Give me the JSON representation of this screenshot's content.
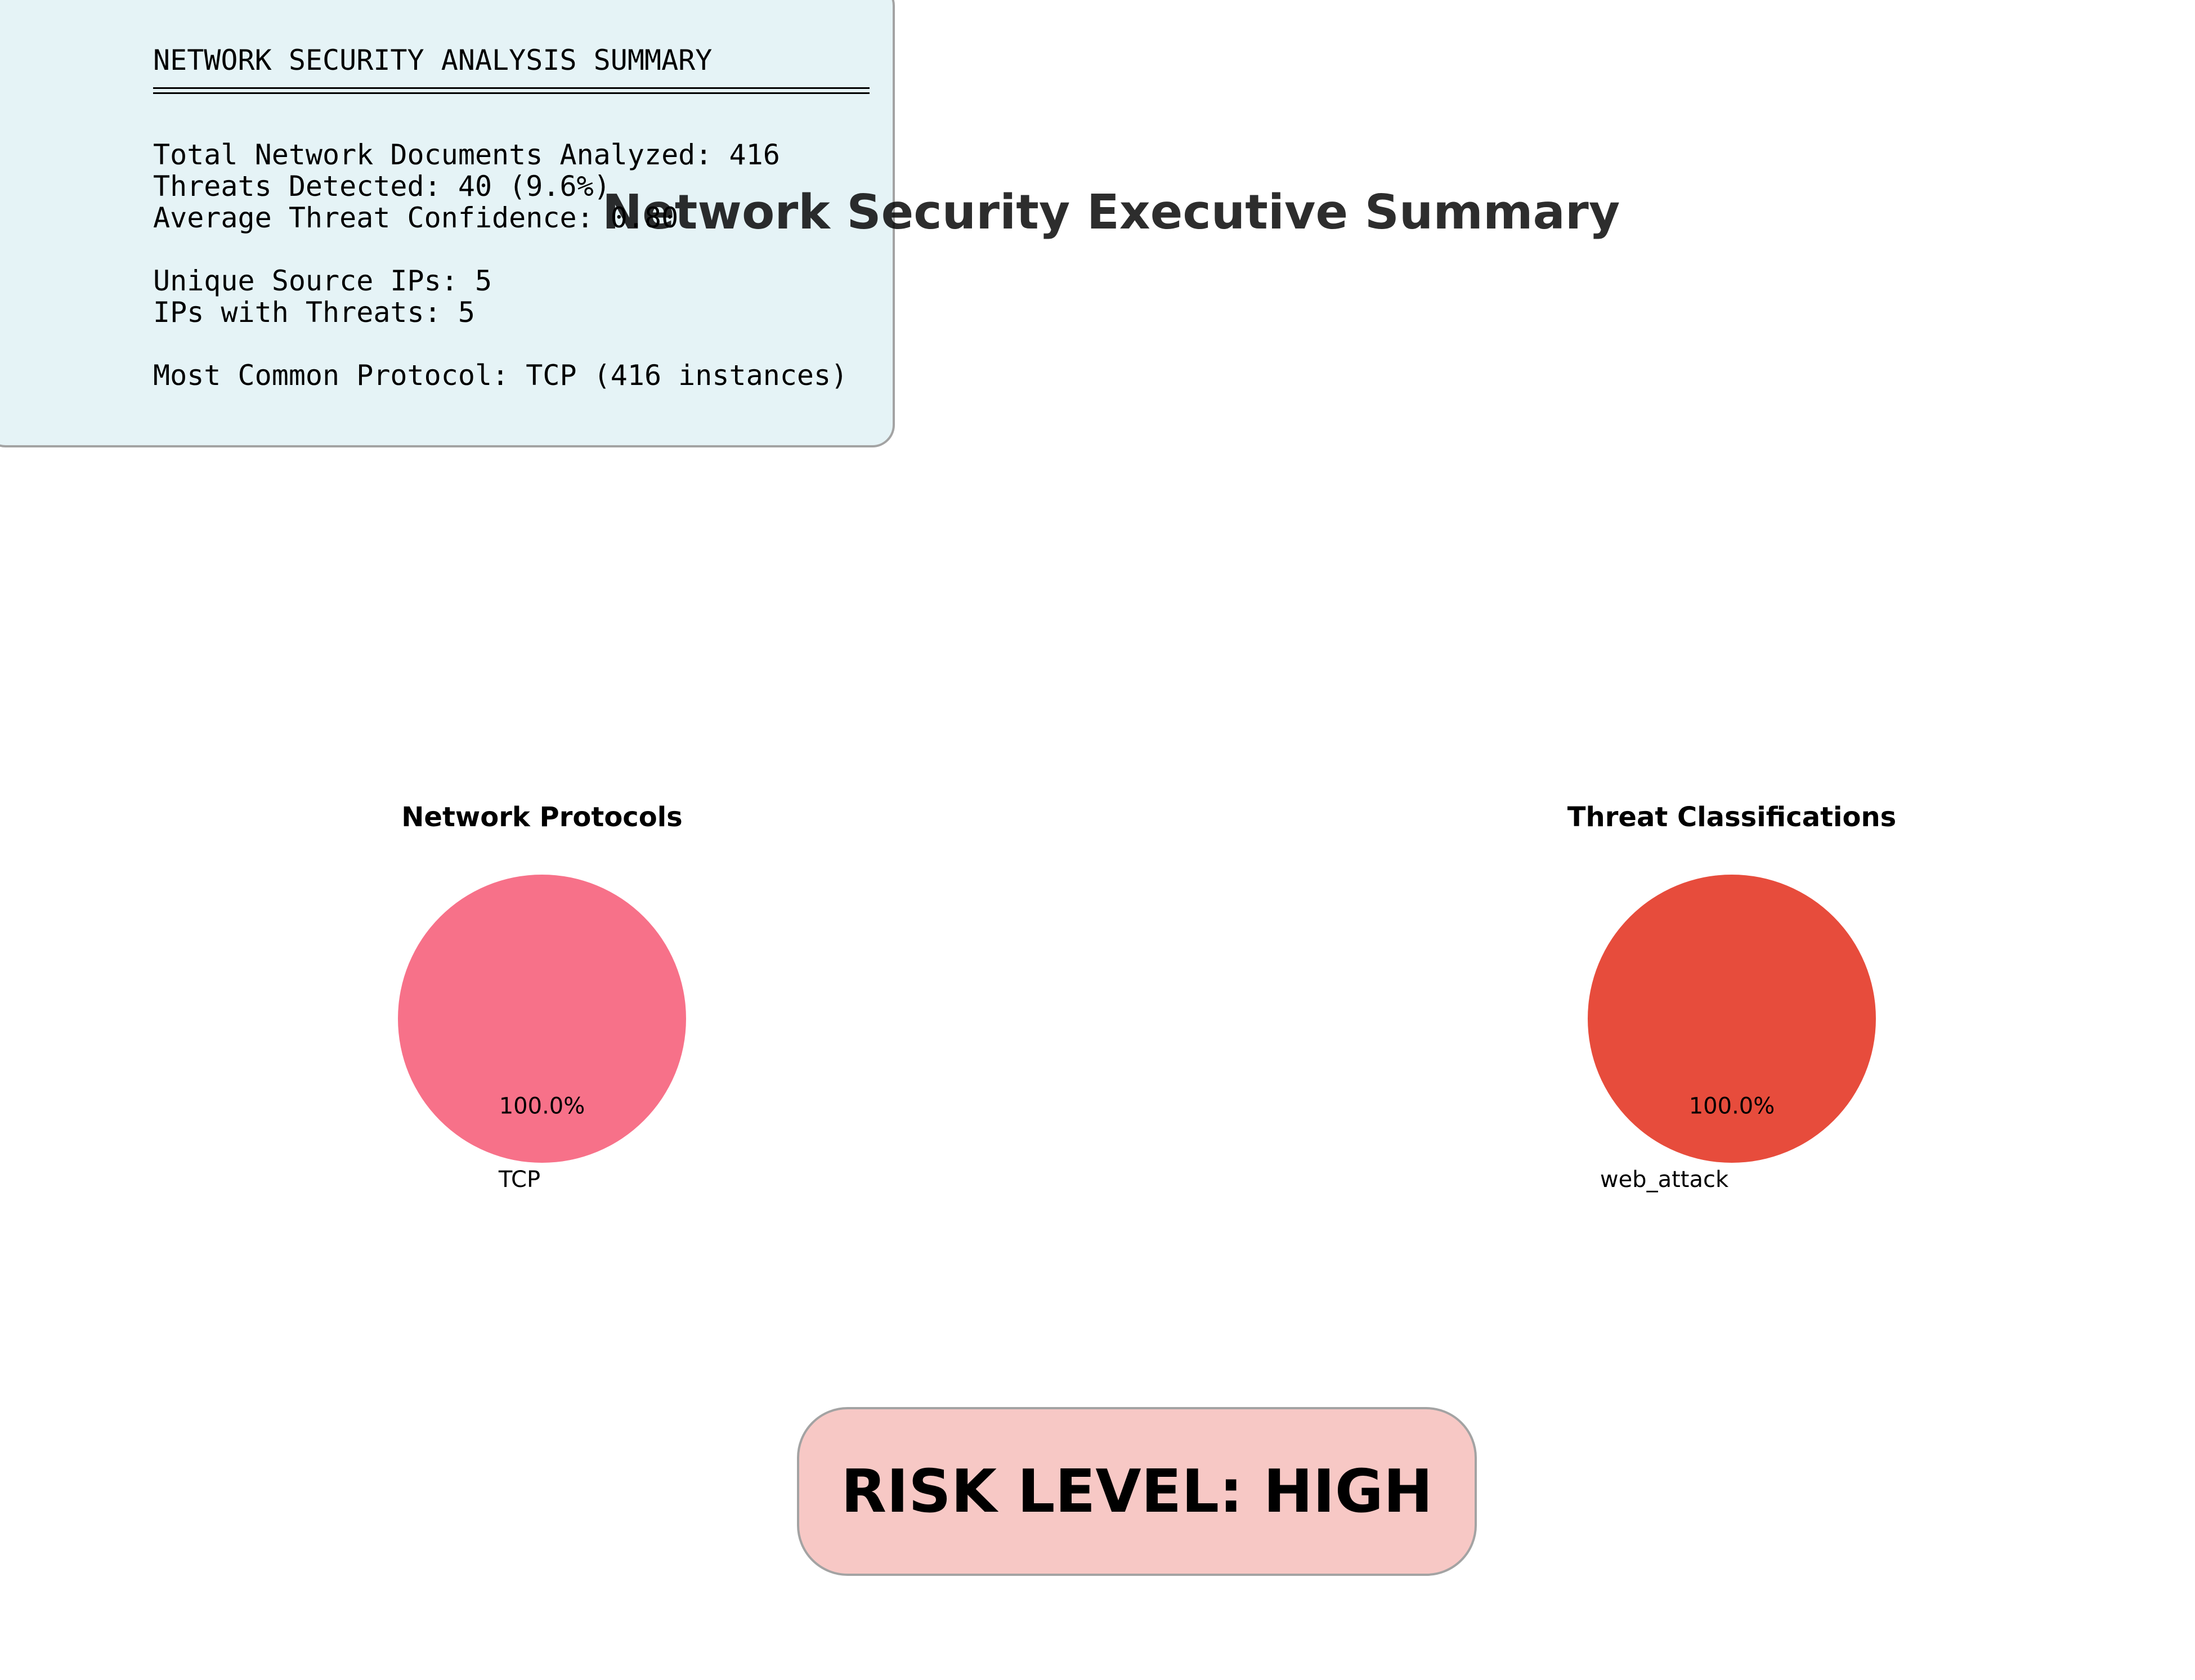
{
  "main_title": "Network Security Executive Summary",
  "summary": {
    "heading": "NETWORK SECURITY ANALYSIS SUMMARY",
    "total_docs": "Total Network Documents Analyzed: 416",
    "threats_detected": "Threats Detected: 40 (9.6%)",
    "avg_confidence": "Average Threat Confidence: 0.80",
    "unique_ips": "Unique Source IPs: 5",
    "ips_with_threats": "IPs with Threats: 5",
    "common_protocol": "Most Common Protocol: TCP (416 instances)"
  },
  "risk": {
    "label": "RISK LEVEL: HIGH",
    "color": "#f7c8c5"
  },
  "chart_data": [
    {
      "type": "pie",
      "title": "Network Protocols",
      "categories": [
        "TCP"
      ],
      "values": [
        100
      ],
      "pct_labels": [
        "100.0%"
      ],
      "colors": [
        "#f77189"
      ]
    },
    {
      "type": "pie",
      "title": "Threat Classifications",
      "categories": [
        "web_attack"
      ],
      "values": [
        100
      ],
      "pct_labels": [
        "100.0%"
      ],
      "colors": [
        "#e74c3c"
      ]
    }
  ]
}
